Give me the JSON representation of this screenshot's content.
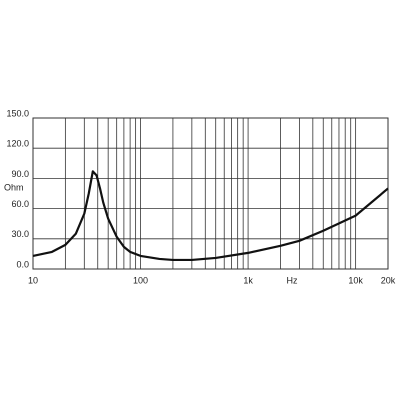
{
  "chart_data": {
    "type": "line",
    "x_label": "Hz",
    "y_label": "Ohm",
    "x": [
      10,
      15,
      20,
      25,
      30,
      33,
      36,
      39,
      42,
      45,
      50,
      60,
      70,
      80,
      100,
      150,
      200,
      300,
      500,
      1000,
      2000,
      3000,
      5000,
      10000,
      20000
    ],
    "values": [
      13,
      17,
      24,
      35,
      55,
      75,
      97,
      93,
      80,
      66,
      50,
      32,
      22,
      17,
      13,
      10,
      9,
      9,
      11,
      16,
      23,
      28,
      38,
      53,
      80
    ],
    "color": "#111111",
    "log_x": true,
    "grid": true,
    "xlim": [
      10,
      20000
    ],
    "xticks": [
      10,
      100,
      {
        "value": 1000,
        "label": "1k"
      },
      {
        "value": 10000,
        "label": "10k"
      },
      {
        "value": 20000,
        "label": "20k"
      }
    ],
    "ylim": [
      0,
      150
    ],
    "yticks": [
      {
        "value": 0,
        "label": "0.0"
      },
      {
        "value": 30,
        "label": "30.0"
      },
      {
        "value": 60,
        "label": "60.0"
      },
      {
        "value": 90,
        "label": "90.0"
      },
      {
        "value": 120,
        "label": "120.0"
      },
      {
        "value": 150,
        "label": "150.0"
      }
    ]
  }
}
